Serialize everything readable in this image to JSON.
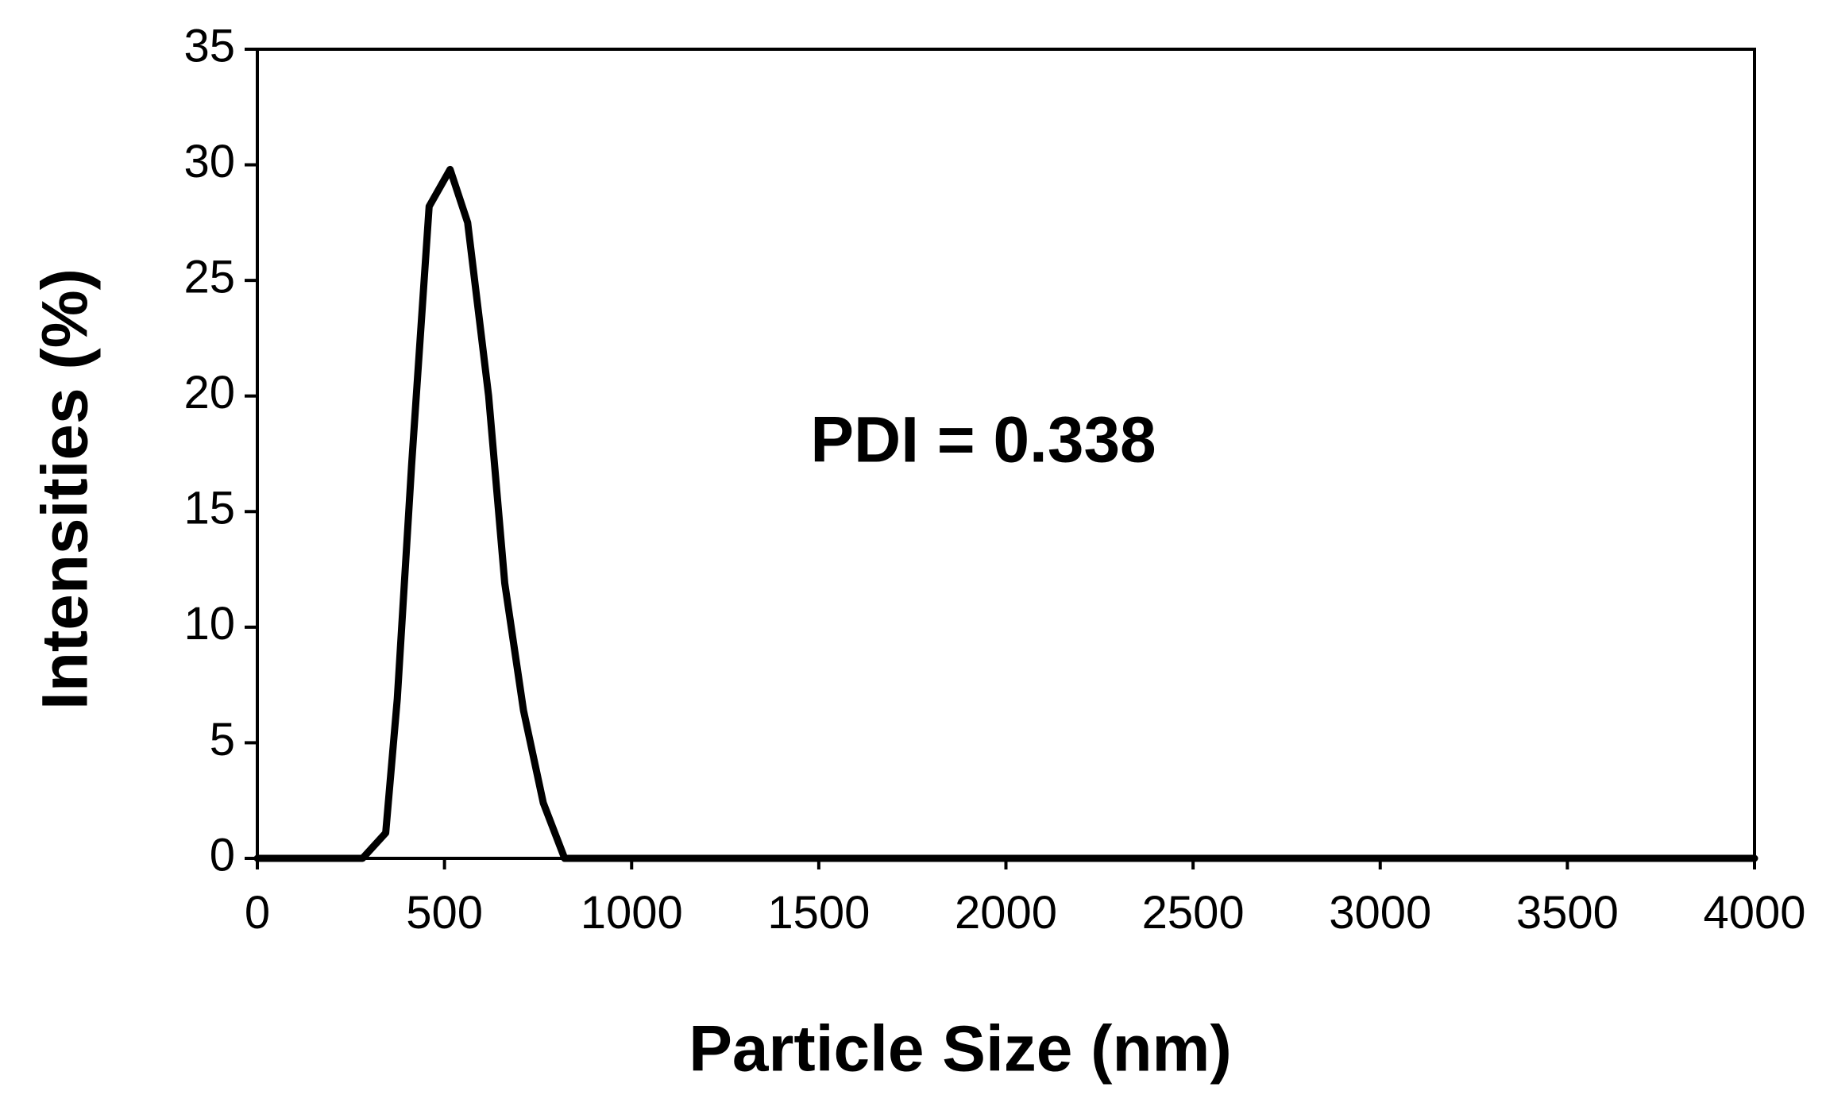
{
  "chart_data": {
    "type": "line",
    "x_label": "Particle Size (nm)",
    "y_label": "Intensities (%)",
    "annotation": "PDI = 0.338",
    "series": [
      {
        "color": "#000000",
        "x": [
          0,
          156,
          250,
          281,
          343,
          374,
          412,
          459,
          515,
          562,
          618,
          661,
          711,
          764,
          821,
          905,
          4000
        ],
        "values": [
          0,
          0,
          0,
          0,
          1.1,
          6.9,
          17.0,
          28.2,
          29.8,
          27.5,
          20,
          11.9,
          6.4,
          2.4,
          0,
          0,
          0
        ]
      }
    ],
    "xlim": [
      0,
      4000
    ],
    "xticks": [
      0,
      500,
      1000,
      1500,
      2000,
      2500,
      3000,
      3500,
      4000
    ],
    "ylim": [
      0,
      35
    ],
    "yticks": [
      0,
      5,
      10,
      15,
      20,
      25,
      30,
      35
    ],
    "grid": false
  }
}
